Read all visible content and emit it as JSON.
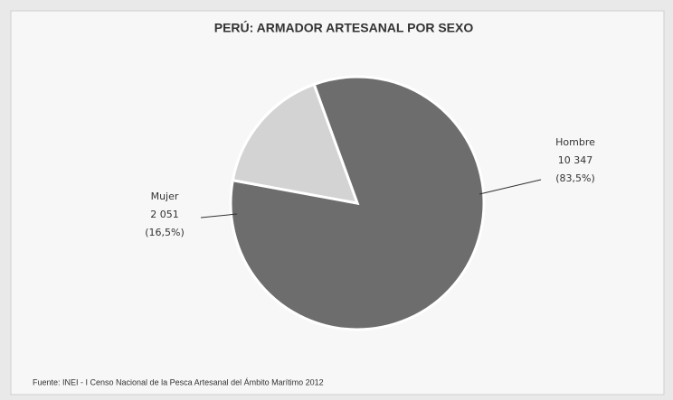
{
  "chart_data": {
    "type": "pie",
    "title": "PERÚ: ARMADOR ARTESANAL POR SEXO",
    "categories": [
      "Hombre",
      "Mujer"
    ],
    "values": [
      10347,
      2051
    ],
    "value_labels": [
      "10 347",
      "2 051"
    ],
    "percentages": [
      83.5,
      16.5
    ],
    "percentage_labels": [
      "(83,5%)",
      "(16,5%)"
    ],
    "colors": [
      "#6d6d6d",
      "#d3d3d3"
    ],
    "source": "Fuente: INEI - I Censo Nacional de la Pesca Artesanal del Ámbito Marítimo 2012"
  }
}
